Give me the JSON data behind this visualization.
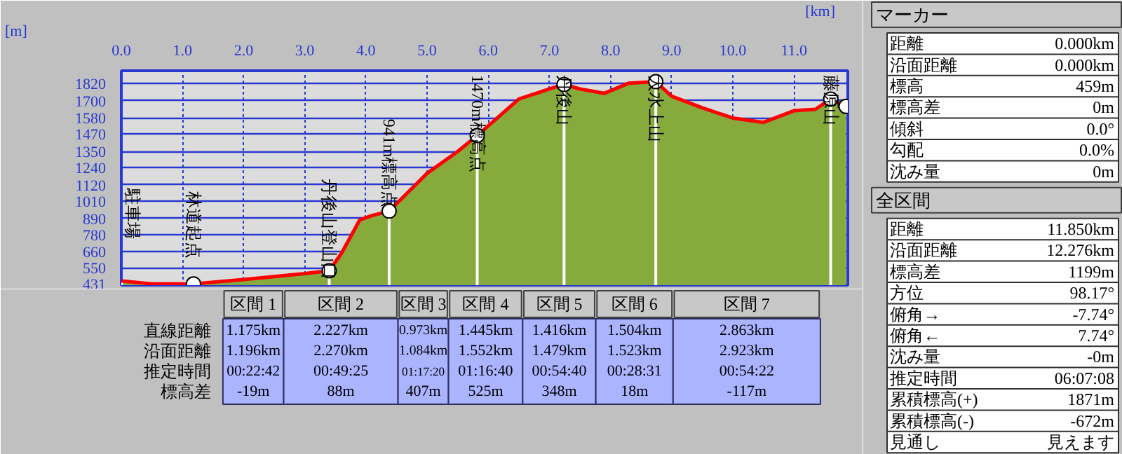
{
  "chart_data": [
    {
      "type": "area",
      "xlabel": "[km]",
      "ylabel": "[m]",
      "x": [
        0,
        0.5,
        1.18,
        2.0,
        3.0,
        3.4,
        3.6,
        3.9,
        4.1,
        4.38,
        5.0,
        5.5,
        5.82,
        6.2,
        6.5,
        7.0,
        7.24,
        7.5,
        7.9,
        8.3,
        8.74,
        9.0,
        9.5,
        10.0,
        10.5,
        11.0,
        11.35,
        11.6,
        11.85
      ],
      "series": [
        {
          "type": "area",
          "color": "#86aa3c",
          "values": [
            460,
            440,
            440,
            470,
            510,
            530,
            650,
            880,
            910,
            940,
            1200,
            1350,
            1460,
            1600,
            1710,
            1780,
            1810,
            1780,
            1750,
            1820,
            1830,
            1730,
            1650,
            1580,
            1550,
            1630,
            1640,
            1710,
            1660
          ]
        },
        {
          "type": "scatter",
          "color": "#ffffff",
          "marker": "circle",
          "x": [
            1.18,
            3.4,
            4.38,
            5.82,
            7.24,
            8.74,
            11.6,
            11.85
          ],
          "values": [
            440,
            530,
            940,
            1460,
            1810,
            1830,
            1710,
            1660
          ]
        }
      ],
      "annotations": [
        {
          "text": "駐車場",
          "x": 0,
          "y": 460
        },
        {
          "text": "林道起点",
          "x": 1.18,
          "y": 440
        },
        {
          "text": "丹後山登山口",
          "x": 3.4,
          "y": 530
        },
        {
          "text": "941m標高点",
          "x": 4.38,
          "y": 940
        },
        {
          "text": "1470m標高点",
          "x": 5.82,
          "y": 1460
        },
        {
          "text": "丹後山",
          "x": 7.24,
          "y": 1810
        },
        {
          "text": "大水上山",
          "x": 8.74,
          "y": 1830
        },
        {
          "text": "藤原山",
          "x": 11.6,
          "y": 1710
        }
      ],
      "xlim": [
        0,
        11.88
      ],
      "ylim": [
        431,
        1905
      ],
      "xticks": [
        {
          "value": 0,
          "label": "0.0"
        },
        {
          "value": 1,
          "label": "1.0"
        },
        {
          "value": 2,
          "label": "2.0"
        },
        {
          "value": 3,
          "label": "3.0"
        },
        {
          "value": 4,
          "label": "4.0"
        },
        {
          "value": 5,
          "label": "5.0"
        },
        {
          "value": 6,
          "label": "6.0"
        },
        {
          "value": 7,
          "label": "7.0"
        },
        {
          "value": 8,
          "label": "8.0"
        },
        {
          "value": 9,
          "label": "9.0"
        },
        {
          "value": 10,
          "label": "10.0"
        },
        {
          "value": 11,
          "label": "11.0"
        }
      ],
      "yticks": [
        431,
        550,
        660,
        780,
        890,
        1010,
        1120,
        1240,
        1350,
        1470,
        1580,
        1700,
        1820
      ],
      "grid": true
    },
    {
      "type": "other",
      "categories": [
        "区間 1",
        "区間 2",
        "区間 3",
        "区間 4",
        "区間 5",
        "区間 6",
        "区間 7"
      ],
      "y_categories": [
        "直線距離",
        "沿面距離",
        "推定時間",
        "標高差"
      ],
      "cell_labels": [
        [
          "1.175km",
          "2.227km",
          "0.973km",
          "1.445km",
          "1.416km",
          "1.504km",
          "2.863km"
        ],
        [
          "1.196km",
          "2.270km",
          "1.084km",
          "1.552km",
          "1.479km",
          "1.523km",
          "2.923km"
        ],
        [
          "00:22:42",
          "00:49:25",
          "01:17:20",
          "01:16:40",
          "00:54:40",
          "00:28:31",
          "00:54:22"
        ],
        [
          "-19m",
          "88m",
          "407m",
          "525m",
          "348m",
          "18m",
          "-117m"
        ]
      ]
    },
    {
      "type": "other",
      "title": "マーカー",
      "y_categories": [
        "距離",
        "沿面距離",
        "標高",
        "標高差",
        "傾斜",
        "勾配",
        "沈み量"
      ],
      "cell_labels": [
        [
          "0.000km"
        ],
        [
          "0.000km"
        ],
        [
          "459m"
        ],
        [
          "0m"
        ],
        [
          "0.0°"
        ],
        [
          "0.0%"
        ],
        [
          "0m"
        ]
      ]
    },
    {
      "type": "other",
      "title": "全区間",
      "y_categories": [
        "距離",
        "沿面距離",
        "標高差",
        "方位",
        "俯角→",
        "俯角←",
        "沈み量",
        "推定時間",
        "累積標高(+)",
        "累積標高(-)",
        "見通し"
      ],
      "cell_labels": [
        [
          "11.850km"
        ],
        [
          "12.276km"
        ],
        [
          "1199m"
        ],
        [
          "98.17°"
        ],
        [
          "-7.74°"
        ],
        [
          "7.74°"
        ],
        [
          "-0m"
        ],
        [
          "06:07:08"
        ],
        [
          "1871m"
        ],
        [
          "-672m"
        ],
        [
          "見えます"
        ]
      ]
    }
  ]
}
